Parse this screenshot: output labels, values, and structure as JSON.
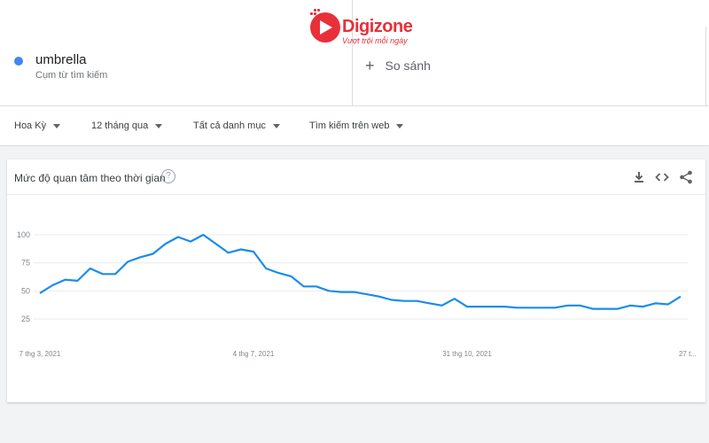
{
  "logo": {
    "name": "Digizone",
    "tagline": "Vượt trội mỗi ngày"
  },
  "term": {
    "name": "umbrella",
    "subtitle": "Cụm từ tìm kiếm",
    "color": "#4285f4"
  },
  "compare": {
    "label": "So sánh"
  },
  "filters": [
    {
      "label": "Hoa Kỳ"
    },
    {
      "label": "12 tháng qua"
    },
    {
      "label": "Tất cả danh mục"
    },
    {
      "label": "Tìm kiếm trên web"
    }
  ],
  "card": {
    "title": "Mức độ quan tâm theo thời gian",
    "help": "?",
    "actions": [
      "download-icon",
      "embed-icon",
      "share-icon"
    ]
  },
  "chart_data": {
    "type": "line",
    "title": "",
    "xlabel": "",
    "ylabel": "",
    "ylim": [
      0,
      100
    ],
    "y_ticks": [
      25,
      50,
      75,
      100
    ],
    "x_tick_labels": [
      "7 thg 3, 2021",
      "4 thg 7, 2021",
      "31 thg 10, 2021",
      "27 t..."
    ],
    "x_tick_index": [
      0,
      17,
      34,
      51
    ],
    "grid": true,
    "series": [
      {
        "color": "#1a8ceb",
        "values": [
          48,
          55,
          60,
          59,
          70,
          65,
          65,
          76,
          80,
          83,
          92,
          98,
          94,
          100,
          92,
          84,
          87,
          85,
          70,
          66,
          63,
          54,
          54,
          50,
          49,
          49,
          47,
          45,
          42,
          41,
          41,
          39,
          37,
          43,
          36,
          36,
          36,
          36,
          35,
          35,
          35,
          35,
          37,
          37,
          34,
          34,
          34,
          37,
          36,
          39,
          38,
          45
        ]
      }
    ]
  }
}
